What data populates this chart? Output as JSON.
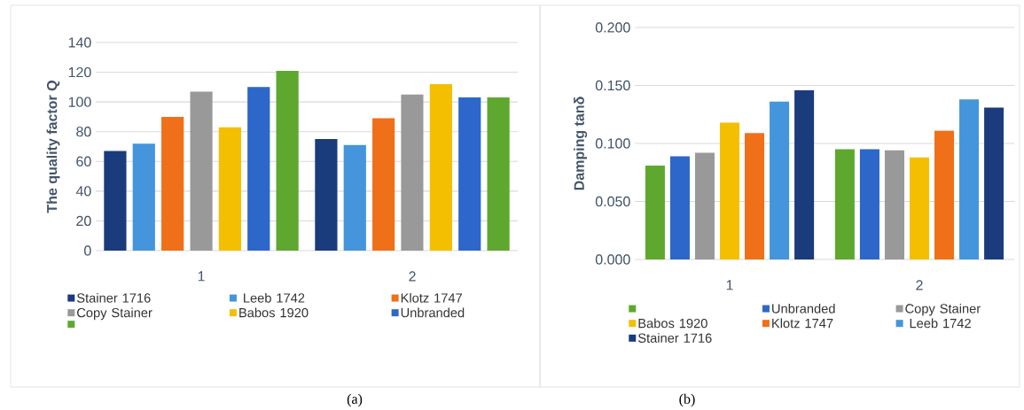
{
  "chart_data": [
    {
      "type": "bar",
      "ylabel": "The quality factor Q",
      "categories": [
        "1",
        "2"
      ],
      "ylim": [
        0,
        140
      ],
      "yticks": [
        0,
        20,
        40,
        60,
        80,
        100,
        120,
        140
      ],
      "grid": "y",
      "legend": "bottom",
      "annotations": [
        "(a)"
      ],
      "series": [
        {
          "name": "Stainer  1716",
          "color": "#1a3b7c",
          "values": [
            67,
            75
          ]
        },
        {
          "name": " Leeb 1742",
          "color": "#4495dc",
          "values": [
            72,
            71
          ]
        },
        {
          "name": "Klotz 1747",
          "color": "#ef7019",
          "values": [
            90,
            89
          ]
        },
        {
          "name": "Copy Stainer",
          "color": "#999999",
          "values": [
            107,
            105
          ]
        },
        {
          "name": "Babos 1920",
          "color": "#f4bf00",
          "values": [
            83,
            112
          ]
        },
        {
          "name": "Unbranded",
          "color": "#2d67c9",
          "values": [
            110,
            103
          ]
        },
        {
          "color": "#5fa830",
          "values": [
            121,
            103
          ]
        }
      ]
    },
    {
      "type": "bar",
      "ylabel": "Damping tanδ",
      "categories": [
        "1",
        "2"
      ],
      "ylim": [
        0,
        0.2
      ],
      "yticks": [
        {
          "value": 0,
          "label": "0.000"
        },
        {
          "value": 0.05,
          "label": "0.050"
        },
        {
          "value": 0.1,
          "label": "0.100"
        },
        {
          "value": 0.15,
          "label": "0.150"
        },
        {
          "value": 0.2,
          "label": "0.200"
        }
      ],
      "grid": "y",
      "legend": "bottom",
      "annotations": [
        "(b)"
      ],
      "series": [
        {
          "color": "#5fa830",
          "values": [
            0.081,
            0.095
          ]
        },
        {
          "name": "Unbranded",
          "color": "#2d67c9",
          "values": [
            0.089,
            0.095
          ]
        },
        {
          "name": "Copy Stainer",
          "color": "#999999",
          "values": [
            0.092,
            0.094
          ]
        },
        {
          "name": "Babos 1920",
          "color": "#f4bf00",
          "values": [
            0.118,
            0.088
          ]
        },
        {
          "name": "Klotz 1747",
          "color": "#ef7019",
          "values": [
            0.109,
            0.111
          ]
        },
        {
          "name": " Leeb 1742",
          "color": "#4495dc",
          "values": [
            0.136,
            0.138
          ]
        },
        {
          "name": "Stainer  1716",
          "color": "#1a3b7c",
          "values": [
            0.146,
            0.131
          ]
        }
      ]
    }
  ]
}
